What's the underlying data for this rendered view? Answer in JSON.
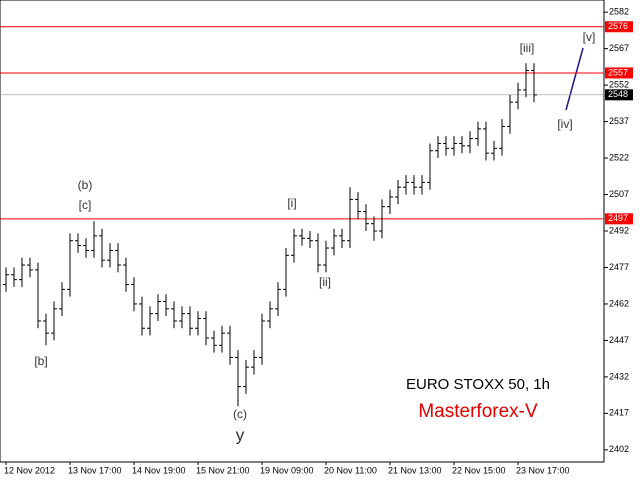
{
  "chart_data": {
    "type": "ohlc",
    "title": "EURO STOXX 50, 1h",
    "subtitle": "Masterforex-V",
    "annotations": [
      "(b)",
      "[c]",
      "[b]",
      "[i]",
      "[ii]",
      "(c)",
      "y",
      "[iii]",
      "[iv]",
      "[v]"
    ],
    "categories": [
      "12 Nov 2012",
      null,
      null,
      null,
      null,
      null,
      null,
      null,
      "13 Nov 17:00",
      null,
      null,
      null,
      null,
      null,
      null,
      null,
      "14 Nov 19:00",
      null,
      null,
      null,
      null,
      null,
      null,
      null,
      "15 Nov 21:00",
      null,
      null,
      null,
      null,
      null,
      null,
      null,
      "19 Nov 09:00",
      null,
      null,
      null,
      null,
      null,
      null,
      null,
      "20 Nov 11:00",
      null,
      null,
      null,
      null,
      null,
      null,
      null,
      "21 Nov 13:00",
      null,
      null,
      null,
      null,
      null,
      null,
      null,
      "22 Nov 15:00",
      null,
      null,
      null,
      null,
      null,
      null,
      null,
      "23 Nov 17:00",
      null,
      null
    ],
    "open": [
      2470,
      2474,
      2472,
      2478,
      2476,
      2455,
      2450,
      2460,
      2468,
      2488,
      2486,
      2484,
      2490,
      2480,
      2484,
      2478,
      2470,
      2462,
      2452,
      2458,
      2463,
      2460,
      2455,
      2458,
      2452,
      2456,
      2448,
      2445,
      2450,
      2440,
      2428,
      2436,
      2440,
      2455,
      2460,
      2468,
      2482,
      2490,
      2489,
      2488,
      2478,
      2485,
      2490,
      2488,
      2505,
      2500,
      2495,
      2492,
      2502,
      2506,
      2510,
      2512,
      2510,
      2512,
      2525,
      2528,
      2526,
      2528,
      2527,
      2530,
      2534,
      2524,
      2526,
      2535,
      2545,
      2550,
      2558
    ],
    "high": [
      2477,
      2477,
      2481,
      2481,
      2479,
      2458,
      2463,
      2471,
      2491,
      2491,
      2489,
      2496,
      2493,
      2487,
      2487,
      2481,
      2473,
      2465,
      2461,
      2466,
      2466,
      2463,
      2461,
      2461,
      2459,
      2459,
      2451,
      2453,
      2453,
      2443,
      2439,
      2443,
      2458,
      2463,
      2471,
      2485,
      2493,
      2493,
      2492,
      2491,
      2488,
      2493,
      2493,
      2510,
      2508,
      2503,
      2498,
      2505,
      2509,
      2513,
      2515,
      2515,
      2515,
      2528,
      2531,
      2531,
      2531,
      2531,
      2533,
      2537,
      2537,
      2529,
      2538,
      2548,
      2553,
      2561,
      2561
    ],
    "low": [
      2467,
      2469,
      2469,
      2473,
      2452,
      2445,
      2447,
      2457,
      2465,
      2483,
      2481,
      2481,
      2477,
      2477,
      2475,
      2467,
      2459,
      2449,
      2449,
      2455,
      2457,
      2452,
      2452,
      2449,
      2449,
      2445,
      2442,
      2442,
      2437,
      2420,
      2425,
      2433,
      2437,
      2452,
      2457,
      2465,
      2479,
      2486,
      2485,
      2475,
      2475,
      2482,
      2485,
      2485,
      2497,
      2492,
      2488,
      2489,
      2499,
      2503,
      2507,
      2507,
      2507,
      2509,
      2522,
      2523,
      2523,
      2524,
      2524,
      2527,
      2521,
      2521,
      2523,
      2532,
      2542,
      2547,
      2545
    ],
    "close": [
      2474,
      2472,
      2478,
      2476,
      2455,
      2450,
      2460,
      2468,
      2488,
      2486,
      2484,
      2490,
      2480,
      2484,
      2478,
      2470,
      2462,
      2452,
      2458,
      2463,
      2460,
      2455,
      2458,
      2452,
      2456,
      2448,
      2445,
      2450,
      2440,
      2428,
      2436,
      2440,
      2455,
      2460,
      2468,
      2482,
      2490,
      2489,
      2488,
      2478,
      2485,
      2490,
      2488,
      2505,
      2500,
      2495,
      2492,
      2502,
      2506,
      2510,
      2512,
      2510,
      2512,
      2525,
      2528,
      2526,
      2528,
      2527,
      2530,
      2534,
      2524,
      2526,
      2535,
      2545,
      2550,
      2558,
      2548
    ],
    "color": "#000000",
    "ylim": [
      2397,
      2587
    ],
    "yticks": [
      2582,
      2567,
      2552,
      2537,
      2522,
      2507,
      2492,
      2477,
      2462,
      2447,
      2432,
      2417,
      2402
    ],
    "hlines": [
      2576,
      2557,
      2497
    ],
    "hline_color": "#ff0000",
    "last_price": 2548,
    "grid": false
  }
}
